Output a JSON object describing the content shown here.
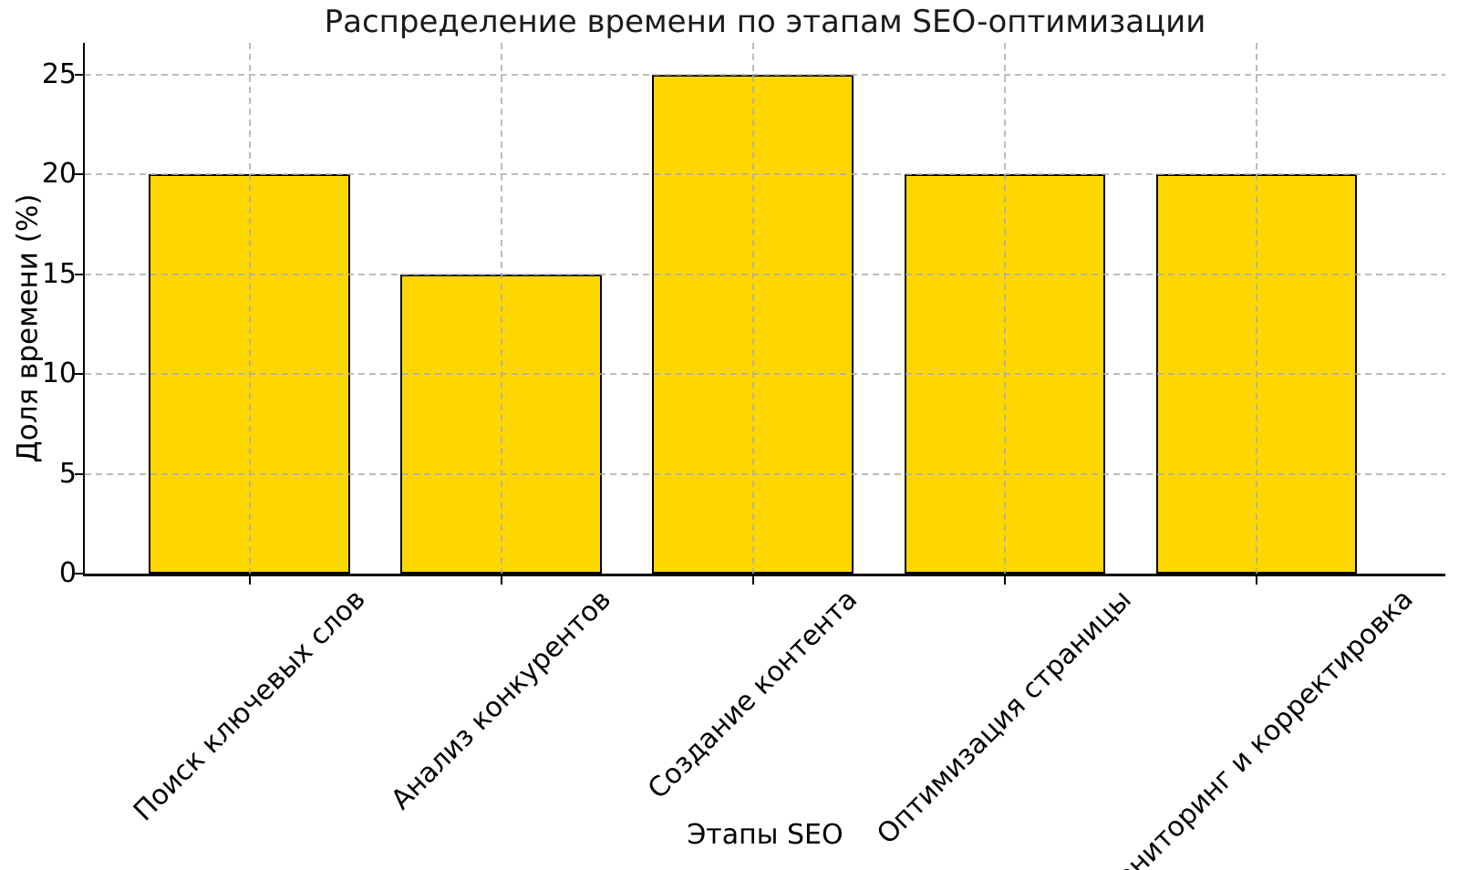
{
  "chart_data": {
    "type": "bar",
    "title": "Распределение времени по этапам SEO-оптимизации",
    "xlabel": "Этапы SEO",
    "ylabel": "Доля времени (%)",
    "categories": [
      "Поиск ключевых слов",
      "Анализ конкурентов",
      "Создание контента",
      "Оптимизация страницы",
      "Мониторинг и корректировка"
    ],
    "values": [
      20,
      15,
      25,
      20,
      20
    ],
    "yticks": [
      0,
      5,
      10,
      15,
      20,
      25
    ],
    "ylim": [
      0,
      26.6
    ],
    "xlim": [
      -0.655,
      4.75
    ],
    "bar_width_ratio": 0.8,
    "x_tick_rotation_deg": 45,
    "grid": "both-dashed",
    "legend": "none",
    "colors": {
      "bar_fill": "#FFD700",
      "bar_edge": "#000000",
      "grid": "rgba(172,172,172,0.8)",
      "axis": "#000000",
      "text": "#1a1a1a",
      "background": "#ffffff"
    }
  }
}
